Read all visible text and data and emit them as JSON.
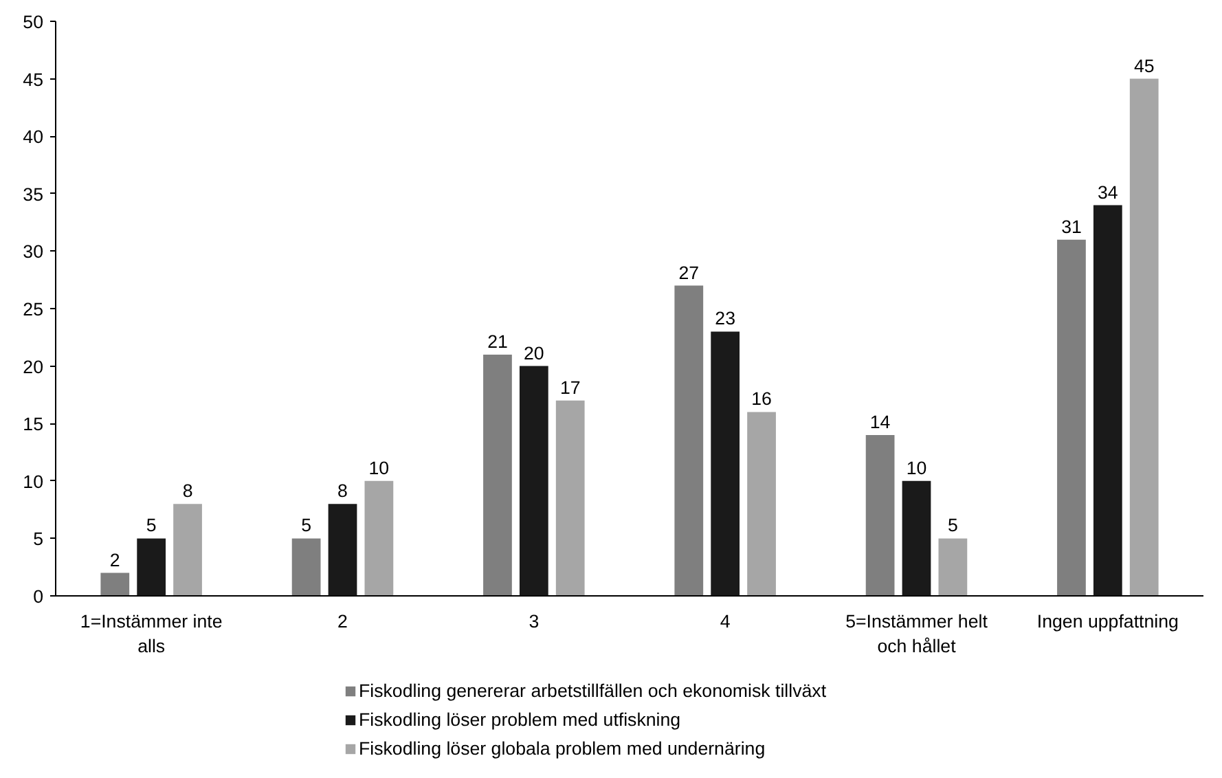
{
  "chart_data": {
    "type": "bar",
    "categories": [
      "1=Instämmer inte alls",
      "2",
      "3",
      "4",
      "5=Instämmer helt och hållet",
      "Ingen uppfattning"
    ],
    "series": [
      {
        "name": "Fiskodling genererar arbetstillfällen och ekonomisk tillväxt",
        "color": "#7f7f7f",
        "values": [
          2,
          5,
          21,
          27,
          14,
          31
        ]
      },
      {
        "name": "Fiskodling löser problem med utfiskning",
        "color": "#1a1a1a",
        "values": [
          5,
          8,
          20,
          23,
          10,
          34
        ]
      },
      {
        "name": "Fiskodling löser globala problem med undernäring",
        "color": "#a6a6a6",
        "values": [
          8,
          10,
          17,
          16,
          5,
          45
        ]
      }
    ],
    "ylim": [
      0,
      50
    ],
    "yticks": [
      0,
      5,
      10,
      15,
      20,
      25,
      30,
      35,
      40,
      45,
      50
    ],
    "grid": false,
    "legend": "bottom",
    "data_labels": true
  }
}
